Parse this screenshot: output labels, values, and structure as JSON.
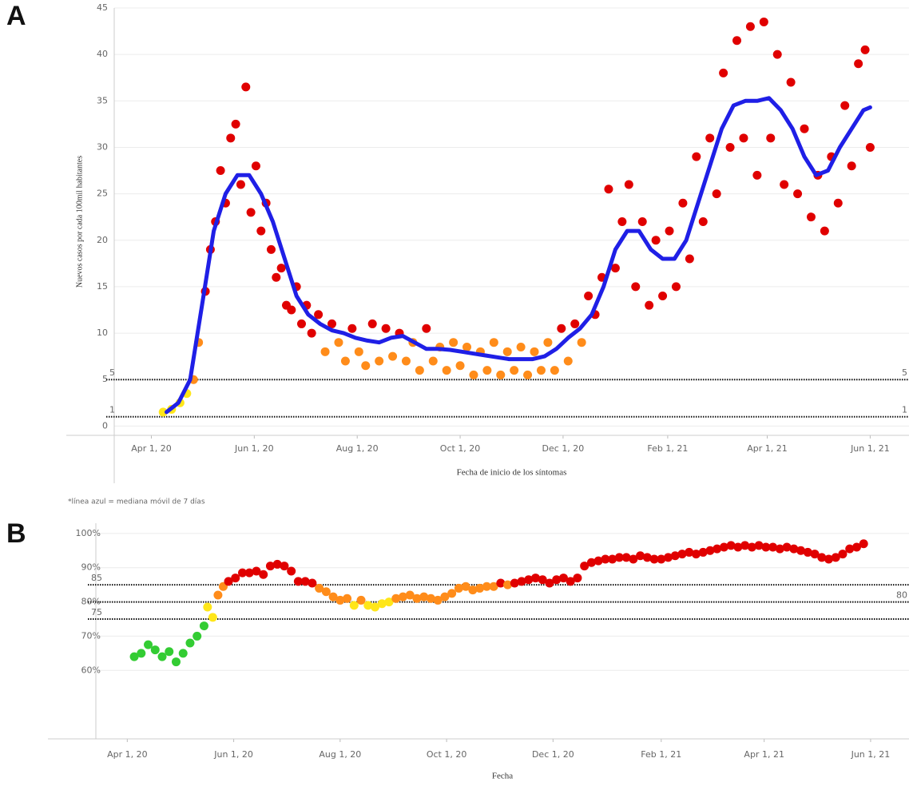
{
  "chart_data": [
    {
      "type": "scatter",
      "title": "A",
      "y_label": "Nuevos casos por cada 100mil habitantes",
      "x_label": "Fecha de inicio de los síntomas",
      "note": "*línea azul = mediana móvil de 7 días",
      "x": [
        "2020-04-08",
        "2020-04-13",
        "2020-04-18",
        "2020-04-22",
        "2020-04-26",
        "2020-04-29",
        "2020-05-03",
        "2020-05-06",
        "2020-05-09",
        "2020-05-12",
        "2020-05-15",
        "2020-05-18",
        "2020-05-21",
        "2020-05-24",
        "2020-05-27",
        "2020-05-30",
        "2020-06-02",
        "2020-06-05",
        "2020-06-08",
        "2020-06-11",
        "2020-06-14",
        "2020-06-17",
        "2020-06-20",
        "2020-06-23",
        "2020-06-26",
        "2020-06-29",
        "2020-07-02",
        "2020-07-05",
        "2020-07-09",
        "2020-07-13",
        "2020-07-17",
        "2020-07-21",
        "2020-07-25",
        "2020-07-29",
        "2020-08-02",
        "2020-08-06",
        "2020-08-10",
        "2020-08-14",
        "2020-08-18",
        "2020-08-22",
        "2020-08-26",
        "2020-08-30",
        "2020-09-03",
        "2020-09-07",
        "2020-09-11",
        "2020-09-15",
        "2020-09-19",
        "2020-09-23",
        "2020-09-27",
        "2020-10-01",
        "2020-10-05",
        "2020-10-09",
        "2020-10-13",
        "2020-10-17",
        "2020-10-21",
        "2020-10-25",
        "2020-10-29",
        "2020-11-02",
        "2020-11-06",
        "2020-11-10",
        "2020-11-14",
        "2020-11-18",
        "2020-11-22",
        "2020-11-26",
        "2020-11-30",
        "2020-12-04",
        "2020-12-08",
        "2020-12-12",
        "2020-12-16",
        "2020-12-20",
        "2020-12-24",
        "2020-12-28",
        "2021-01-01",
        "2021-01-05",
        "2021-01-09",
        "2021-01-13",
        "2021-01-17",
        "2021-01-21",
        "2021-01-25",
        "2021-01-29",
        "2021-02-02",
        "2021-02-06",
        "2021-02-10",
        "2021-02-14",
        "2021-02-18",
        "2021-02-22",
        "2021-02-26",
        "2021-03-02",
        "2021-03-06",
        "2021-03-10",
        "2021-03-14",
        "2021-03-18",
        "2021-03-22",
        "2021-03-26",
        "2021-03-30",
        "2021-04-03",
        "2021-04-07",
        "2021-04-11",
        "2021-04-15",
        "2021-04-19",
        "2021-04-23",
        "2021-04-27",
        "2021-05-01",
        "2021-05-05",
        "2021-05-09",
        "2021-05-13",
        "2021-05-17",
        "2021-05-21",
        "2021-05-25",
        "2021-05-29",
        "2021-06-01"
      ],
      "values": [
        1.5,
        1.8,
        2.5,
        3.5,
        5,
        9,
        14.5,
        19,
        22,
        27.5,
        24,
        31,
        32.5,
        26,
        36.5,
        23,
        28,
        21,
        24,
        19,
        16,
        17,
        13,
        12.5,
        15,
        11,
        13,
        10,
        12,
        8,
        11,
        9,
        7,
        10.5,
        8,
        6.5,
        11,
        7,
        10.5,
        7.5,
        10,
        7,
        9,
        6,
        10.5,
        7,
        8.5,
        6,
        9,
        6.5,
        8.5,
        5.5,
        8,
        6,
        9,
        5.5,
        8,
        6,
        8.5,
        5.5,
        8,
        6,
        9,
        6,
        10.5,
        7,
        11,
        9,
        14,
        12,
        16,
        25.5,
        17,
        22,
        26,
        15,
        22,
        13,
        20,
        14,
        21,
        15,
        24,
        18,
        29,
        22,
        31,
        25,
        38,
        30,
        41.5,
        31,
        43,
        27,
        43.5,
        31,
        40,
        26,
        37,
        25,
        32,
        22.5,
        27,
        21,
        29,
        24,
        34.5,
        28,
        39,
        40.5,
        30
      ],
      "colors": [
        "#ffe619",
        "#ffe619",
        "#ffe619",
        "#ffe619",
        "#ff8c1a",
        "#ff8c1a",
        "#e00000",
        "#e00000",
        "#e00000",
        "#e00000",
        "#e00000",
        "#e00000",
        "#e00000",
        "#e00000",
        "#e00000",
        "#e00000",
        "#e00000",
        "#e00000",
        "#e00000",
        "#e00000",
        "#e00000",
        "#e00000",
        "#e00000",
        "#e00000",
        "#e00000",
        "#e00000",
        "#e00000",
        "#e00000",
        "#e00000",
        "#ff8c1a",
        "#e00000",
        "#ff8c1a",
        "#ff8c1a",
        "#e00000",
        "#ff8c1a",
        "#ff8c1a",
        "#e00000",
        "#ff8c1a",
        "#e00000",
        "#ff8c1a",
        "#e00000",
        "#ff8c1a",
        "#ff8c1a",
        "#ff8c1a",
        "#e00000",
        "#ff8c1a",
        "#ff8c1a",
        "#ff8c1a",
        "#ff8c1a",
        "#ff8c1a",
        "#ff8c1a",
        "#ff8c1a",
        "#ff8c1a",
        "#ff8c1a",
        "#ff8c1a",
        "#ff8c1a",
        "#ff8c1a",
        "#ff8c1a",
        "#ff8c1a",
        "#ff8c1a",
        "#ff8c1a",
        "#ff8c1a",
        "#ff8c1a",
        "#ff8c1a",
        "#e00000",
        "#ff8c1a",
        "#e00000",
        "#ff8c1a",
        "#e00000",
        "#e00000",
        "#e00000",
        "#e00000",
        "#e00000",
        "#e00000",
        "#e00000",
        "#e00000",
        "#e00000",
        "#e00000",
        "#e00000",
        "#e00000",
        "#e00000",
        "#e00000",
        "#e00000",
        "#e00000",
        "#e00000",
        "#e00000",
        "#e00000",
        "#e00000",
        "#e00000",
        "#e00000",
        "#e00000",
        "#e00000",
        "#e00000",
        "#e00000",
        "#e00000",
        "#e00000",
        "#e00000",
        "#e00000",
        "#e00000",
        "#e00000",
        "#e00000",
        "#e00000",
        "#e00000",
        "#e00000",
        "#e00000",
        "#e00000",
        "#e00000",
        "#e00000",
        "#e00000",
        "#e00000",
        "#e00000"
      ],
      "line": {
        "color": "#1f1fe6",
        "x": [
          "2020-04-10",
          "2020-04-17",
          "2020-04-24",
          "2020-05-01",
          "2020-05-08",
          "2020-05-15",
          "2020-05-22",
          "2020-05-29",
          "2020-06-05",
          "2020-06-12",
          "2020-06-19",
          "2020-06-26",
          "2020-07-03",
          "2020-07-10",
          "2020-07-17",
          "2020-07-24",
          "2020-07-31",
          "2020-08-07",
          "2020-08-14",
          "2020-08-21",
          "2020-08-28",
          "2020-09-04",
          "2020-09-11",
          "2020-09-18",
          "2020-09-25",
          "2020-10-02",
          "2020-10-09",
          "2020-10-16",
          "2020-10-23",
          "2020-10-30",
          "2020-11-06",
          "2020-11-13",
          "2020-11-20",
          "2020-11-27",
          "2020-12-04",
          "2020-12-11",
          "2020-12-18",
          "2020-12-25",
          "2021-01-01",
          "2021-01-08",
          "2021-01-15",
          "2021-01-22",
          "2021-01-29",
          "2021-02-05",
          "2021-02-12",
          "2021-02-19",
          "2021-02-26",
          "2021-03-05",
          "2021-03-12",
          "2021-03-19",
          "2021-03-26",
          "2021-04-02",
          "2021-04-09",
          "2021-04-16",
          "2021-04-23",
          "2021-04-30",
          "2021-05-07",
          "2021-05-14",
          "2021-05-21",
          "2021-05-28",
          "2021-06-01"
        ],
        "values": [
          1.5,
          2.5,
          5,
          13,
          21,
          25,
          27,
          27,
          25,
          22,
          18,
          14,
          12,
          11,
          10.3,
          10,
          9.5,
          9.2,
          9,
          9.5,
          9.7,
          9,
          8.3,
          8.3,
          8.2,
          8,
          7.8,
          7.6,
          7.4,
          7.2,
          7.2,
          7.2,
          7.5,
          8.3,
          9.5,
          10.5,
          12,
          15,
          19,
          21,
          21,
          19,
          18,
          18,
          20,
          24,
          28,
          32,
          34.5,
          35,
          35,
          35.3,
          34,
          32,
          29,
          27,
          27.5,
          30,
          32,
          34,
          34.3
        ]
      },
      "xlim": [
        "2020-03-10",
        "2021-06-24"
      ],
      "xticks": [
        {
          "value": "2020-04-01",
          "label": "Apr 1, 20"
        },
        {
          "value": "2020-06-01",
          "label": "Jun 1, 20"
        },
        {
          "value": "2020-08-01",
          "label": "Aug 1, 20"
        },
        {
          "value": "2020-10-01",
          "label": "Oct 1, 20"
        },
        {
          "value": "2020-12-01",
          "label": "Dec 1, 20"
        },
        {
          "value": "2021-02-01",
          "label": "Feb 1, 21"
        },
        {
          "value": "2021-04-01",
          "label": "Apr 1, 21"
        },
        {
          "value": "2021-06-01",
          "label": "Jun 1, 21"
        }
      ],
      "ylim": [
        -1,
        45
      ],
      "yticks": [
        0,
        5,
        10,
        15,
        20,
        25,
        30,
        35,
        40,
        45
      ],
      "grid": true,
      "ref_lines": [
        {
          "value": 5,
          "label_side": "both"
        },
        {
          "value": 1,
          "label_side": "both"
        }
      ]
    },
    {
      "type": "scatter",
      "title": "B",
      "x_label": "Fecha",
      "x": [
        "2020-04-05",
        "2020-04-09",
        "2020-04-13",
        "2020-04-17",
        "2020-04-21",
        "2020-04-25",
        "2020-04-29",
        "2020-05-03",
        "2020-05-07",
        "2020-05-11",
        "2020-05-15",
        "2020-05-17",
        "2020-05-20",
        "2020-05-23",
        "2020-05-26",
        "2020-05-29",
        "2020-06-02",
        "2020-06-06",
        "2020-06-10",
        "2020-06-14",
        "2020-06-18",
        "2020-06-22",
        "2020-06-26",
        "2020-06-30",
        "2020-07-04",
        "2020-07-08",
        "2020-07-12",
        "2020-07-16",
        "2020-07-20",
        "2020-07-24",
        "2020-07-28",
        "2020-08-01",
        "2020-08-05",
        "2020-08-09",
        "2020-08-13",
        "2020-08-17",
        "2020-08-21",
        "2020-08-25",
        "2020-08-29",
        "2020-09-02",
        "2020-09-06",
        "2020-09-10",
        "2020-09-14",
        "2020-09-18",
        "2020-09-22",
        "2020-09-26",
        "2020-09-30",
        "2020-10-04",
        "2020-10-08",
        "2020-10-12",
        "2020-10-16",
        "2020-10-20",
        "2020-10-24",
        "2020-10-28",
        "2020-11-01",
        "2020-11-05",
        "2020-11-09",
        "2020-11-13",
        "2020-11-17",
        "2020-11-21",
        "2020-11-25",
        "2020-11-29",
        "2020-12-03",
        "2020-12-07",
        "2020-12-11",
        "2020-12-15",
        "2020-12-19",
        "2020-12-23",
        "2020-12-27",
        "2020-12-31",
        "2021-01-04",
        "2021-01-08",
        "2021-01-12",
        "2021-01-16",
        "2021-01-20",
        "2021-01-24",
        "2021-01-28",
        "2021-02-01",
        "2021-02-05",
        "2021-02-09",
        "2021-02-13",
        "2021-02-17",
        "2021-02-21",
        "2021-02-25",
        "2021-03-01",
        "2021-03-05",
        "2021-03-09",
        "2021-03-13",
        "2021-03-17",
        "2021-03-21",
        "2021-03-25",
        "2021-03-29",
        "2021-04-02",
        "2021-04-06",
        "2021-04-10",
        "2021-04-14",
        "2021-04-18",
        "2021-04-22",
        "2021-04-26",
        "2021-04-30",
        "2021-05-04",
        "2021-05-08",
        "2021-05-12",
        "2021-05-16",
        "2021-05-20",
        "2021-05-24",
        "2021-05-28"
      ],
      "values": [
        64,
        65,
        67.5,
        66,
        64,
        65.5,
        62.5,
        65,
        68,
        70,
        73,
        78.5,
        75.5,
        82,
        84.5,
        86,
        87,
        88.5,
        88.5,
        89,
        88,
        90.5,
        91,
        90.5,
        89,
        86,
        86,
        85.5,
        84,
        83,
        81.5,
        80.5,
        81,
        79,
        80.5,
        79,
        78.5,
        79.5,
        80,
        81,
        81.5,
        82,
        81,
        81.5,
        81,
        80.5,
        81.5,
        82.5,
        84,
        84.5,
        83.5,
        84,
        84.5,
        84.5,
        85.5,
        85,
        85.5,
        86,
        86.5,
        87,
        86.5,
        85.5,
        86.5,
        87,
        86,
        87,
        90.5,
        91.5,
        92,
        92.5,
        92.5,
        93,
        93,
        92.5,
        93.5,
        93,
        92.5,
        92.5,
        93,
        93.5,
        94,
        94.5,
        94,
        94.5,
        95,
        95.5,
        96,
        96.5,
        96,
        96.5,
        96,
        96.5,
        96,
        96,
        95.5,
        96,
        95.5,
        95,
        94.5,
        94,
        93,
        92.5,
        93,
        94,
        95.5,
        96,
        97
      ],
      "colors": [
        "#33cc33",
        "#33cc33",
        "#33cc33",
        "#33cc33",
        "#33cc33",
        "#33cc33",
        "#33cc33",
        "#33cc33",
        "#33cc33",
        "#33cc33",
        "#33cc33",
        "#ffe619",
        "#ffe619",
        "#ff8c1a",
        "#ff8c1a",
        "#e00000",
        "#e00000",
        "#e00000",
        "#e00000",
        "#e00000",
        "#e00000",
        "#e00000",
        "#e00000",
        "#e00000",
        "#e00000",
        "#e00000",
        "#e00000",
        "#e00000",
        "#ff8c1a",
        "#ff8c1a",
        "#ff8c1a",
        "#ff8c1a",
        "#ff8c1a",
        "#ffe619",
        "#ff8c1a",
        "#ffe619",
        "#ffe619",
        "#ffe619",
        "#ffe619",
        "#ff8c1a",
        "#ff8c1a",
        "#ff8c1a",
        "#ff8c1a",
        "#ff8c1a",
        "#ff8c1a",
        "#ff8c1a",
        "#ff8c1a",
        "#ff8c1a",
        "#ff8c1a",
        "#ff8c1a",
        "#ff8c1a",
        "#ff8c1a",
        "#ff8c1a",
        "#ff8c1a",
        "#e00000",
        "#ff8c1a",
        "#e00000",
        "#e00000",
        "#e00000",
        "#e00000",
        "#e00000",
        "#e00000",
        "#e00000",
        "#e00000",
        "#e00000",
        "#e00000",
        "#e00000",
        "#e00000",
        "#e00000",
        "#e00000",
        "#e00000",
        "#e00000",
        "#e00000",
        "#e00000",
        "#e00000",
        "#e00000",
        "#e00000",
        "#e00000",
        "#e00000",
        "#e00000",
        "#e00000",
        "#e00000",
        "#e00000",
        "#e00000",
        "#e00000",
        "#e00000",
        "#e00000",
        "#e00000",
        "#e00000",
        "#e00000",
        "#e00000",
        "#e00000",
        "#e00000",
        "#e00000",
        "#e00000",
        "#e00000",
        "#e00000",
        "#e00000",
        "#e00000",
        "#e00000",
        "#e00000",
        "#e00000",
        "#e00000",
        "#e00000",
        "#e00000",
        "#e00000",
        "#e00000"
      ],
      "xlim": [
        "2020-03-14",
        "2021-06-23"
      ],
      "xticks": [
        {
          "value": "2020-04-01",
          "label": "Apr 1, 20"
        },
        {
          "value": "2020-06-01",
          "label": "Jun 1, 20"
        },
        {
          "value": "2020-08-01",
          "label": "Aug 1, 20"
        },
        {
          "value": "2020-10-01",
          "label": "Oct 1, 20"
        },
        {
          "value": "2020-12-01",
          "label": "Dec 1, 20"
        },
        {
          "value": "2021-02-01",
          "label": "Feb 1, 21"
        },
        {
          "value": "2021-04-01",
          "label": "Apr 1, 21"
        },
        {
          "value": "2021-06-01",
          "label": "Jun 1, 21"
        }
      ],
      "ylim": [
        40,
        103
      ],
      "yticks": [
        {
          "value": 60,
          "label": "60%"
        },
        {
          "value": 70,
          "label": "70%"
        },
        {
          "value": 80,
          "label": "80%"
        },
        {
          "value": 90,
          "label": "90%"
        },
        {
          "value": 100,
          "label": "100%"
        }
      ],
      "grid": true,
      "ref_lines": [
        {
          "value": 85,
          "label_side": "left"
        },
        {
          "value": 80,
          "label_side": "right"
        },
        {
          "value": 75,
          "label_side": "left"
        }
      ]
    }
  ]
}
